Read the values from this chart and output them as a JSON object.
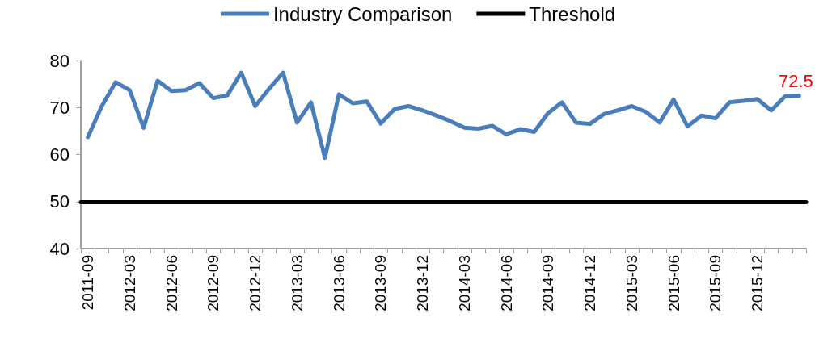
{
  "chart_data": {
    "type": "line",
    "categories": [
      "2011-09",
      null,
      null,
      "2012-03",
      null,
      null,
      "2012-06",
      null,
      null,
      "2012-09",
      null,
      null,
      "2012-12",
      null,
      null,
      "2013-03",
      null,
      null,
      "2013-06",
      null,
      null,
      "2013-09",
      null,
      null,
      "2013-12",
      null,
      null,
      "2014-03",
      null,
      null,
      "2014-06",
      null,
      null,
      "2014-09",
      null,
      null,
      "2014-12",
      null,
      null,
      "2015-03",
      null,
      null,
      "2015-06",
      null,
      null,
      "2015-09",
      null,
      null,
      "2015-12",
      null,
      null,
      null
    ],
    "series": [
      {
        "name": "Industry Comparison",
        "color": "#4a7ebb",
        "values": [
          63.7,
          70.3,
          75.4,
          73.7,
          65.7,
          75.7,
          73.5,
          73.7,
          75.2,
          72.0,
          72.6,
          77.4,
          70.3,
          74.0,
          77.4,
          66.8,
          71.1,
          59.3,
          72.8,
          70.9,
          71.3,
          66.6,
          69.7,
          70.3,
          69.4,
          68.3,
          67.1,
          65.7,
          65.5,
          66.1,
          64.3,
          65.4,
          64.8,
          68.8,
          71.1,
          66.8,
          66.5,
          68.6,
          69.4,
          70.3,
          69.1,
          66.8,
          71.7,
          66.0,
          68.3,
          67.7,
          71.1,
          71.4,
          71.8,
          69.4,
          72.4,
          72.5
        ],
        "value_labels": [
          null,
          null,
          null,
          null,
          null,
          null,
          null,
          null,
          null,
          null,
          null,
          null,
          null,
          null,
          null,
          null,
          null,
          null,
          null,
          null,
          null,
          null,
          null,
          null,
          null,
          null,
          null,
          null,
          null,
          null,
          null,
          null,
          null,
          null,
          null,
          null,
          null,
          null,
          null,
          null,
          null,
          null,
          null,
          null,
          null,
          null,
          null,
          null,
          null,
          null,
          null,
          "72.5"
        ]
      }
    ],
    "ref_lines": [
      {
        "axis": "y",
        "value": 50,
        "label": "Threshold",
        "color": "#000000"
      }
    ],
    "ylim": [
      40,
      80
    ],
    "yticks": [
      40,
      50,
      60,
      70,
      80
    ],
    "grid": false,
    "legend": "top",
    "marker": "none",
    "line_style": "solid"
  }
}
